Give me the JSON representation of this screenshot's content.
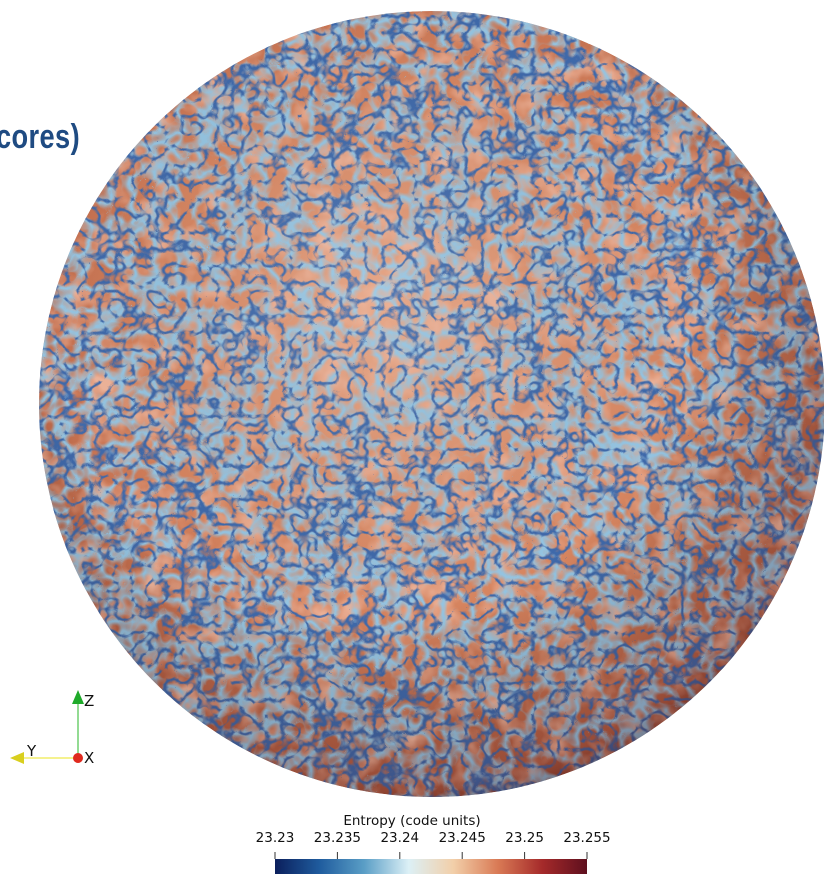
{
  "title_fragment": "cores)",
  "colorbar": {
    "title": "Entropy (code units)",
    "ticks": [
      "23.23",
      "23.235",
      "23.24",
      "23.245",
      "23.25",
      "23.255"
    ],
    "range": [
      23.23,
      23.255
    ],
    "colormap": [
      "#0b1f5c",
      "#1f5c9e",
      "#5a9ec6",
      "#dcf0f6",
      "#f2cfa9",
      "#d97a55",
      "#a52a2a",
      "#5e0f1e"
    ]
  },
  "axes": {
    "z_label": "Z",
    "y_label": "Y",
    "x_label": "X"
  }
}
